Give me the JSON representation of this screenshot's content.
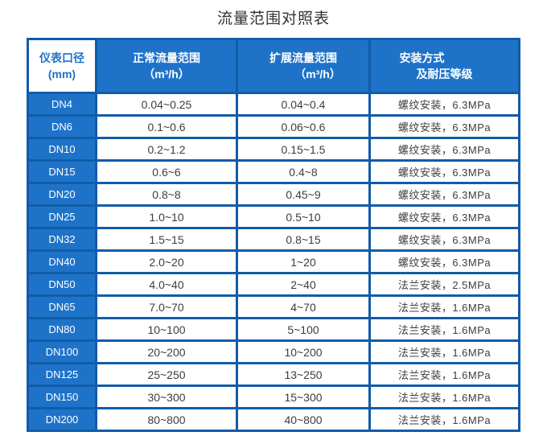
{
  "title": "流量范围对照表",
  "colors": {
    "primary_blue": "#1e73c9",
    "grid_blue": "#115ca8",
    "text_dark": "#3d3d3d",
    "header_text": "#ffffff"
  },
  "table": {
    "headers": {
      "col1_line1": "仪表口径",
      "col1_line2": "(mm)",
      "col2_line1": "正常流量范围",
      "col2_line2": "（m³/h）",
      "col3_line1": "扩展流量范围",
      "col3_line2": "（m³/h）",
      "col4_line1": "安装方式",
      "col4_line2": "及耐压等级"
    },
    "rows": [
      {
        "dn": "DN4",
        "normal": "0.04~0.25",
        "extended": "0.04~0.4",
        "install": "螺纹安装，6.3MPa"
      },
      {
        "dn": "DN6",
        "normal": "0.1~0.6",
        "extended": "0.06~0.6",
        "install": "螺纹安装，6.3MPa"
      },
      {
        "dn": "DN10",
        "normal": "0.2~1.2",
        "extended": "0.15~1.5",
        "install": "螺纹安装，6.3MPa"
      },
      {
        "dn": "DN15",
        "normal": "0.6~6",
        "extended": "0.4~8",
        "install": "螺纹安装，6.3MPa"
      },
      {
        "dn": "DN20",
        "normal": "0.8~8",
        "extended": "0.45~9",
        "install": "螺纹安装，6.3MPa"
      },
      {
        "dn": "DN25",
        "normal": "1.0~10",
        "extended": "0.5~10",
        "install": "螺纹安装，6.3MPa"
      },
      {
        "dn": "DN32",
        "normal": "1.5~15",
        "extended": "0.8~15",
        "install": "螺纹安装，6.3MPa"
      },
      {
        "dn": "DN40",
        "normal": "2.0~20",
        "extended": "1~20",
        "install": "螺纹安装，6.3MPa"
      },
      {
        "dn": "DN50",
        "normal": "4.0~40",
        "extended": "2~40",
        "install": "法兰安装，2.5MPa"
      },
      {
        "dn": "DN65",
        "normal": "7.0~70",
        "extended": "4~70",
        "install": "法兰安装，1.6MPa"
      },
      {
        "dn": "DN80",
        "normal": "10~100",
        "extended": "5~100",
        "install": "法兰安装，1.6MPa"
      },
      {
        "dn": "DN100",
        "normal": "20~200",
        "extended": "10~200",
        "install": "法兰安装，1.6MPa"
      },
      {
        "dn": "DN125",
        "normal": "25~250",
        "extended": "13~250",
        "install": "法兰安装，1.6MPa"
      },
      {
        "dn": "DN150",
        "normal": "30~300",
        "extended": "15~300",
        "install": "法兰安装，1.6MPa"
      },
      {
        "dn": "DN200",
        "normal": "80~800",
        "extended": "40~800",
        "install": "法兰安装，1.6MPa"
      }
    ]
  }
}
